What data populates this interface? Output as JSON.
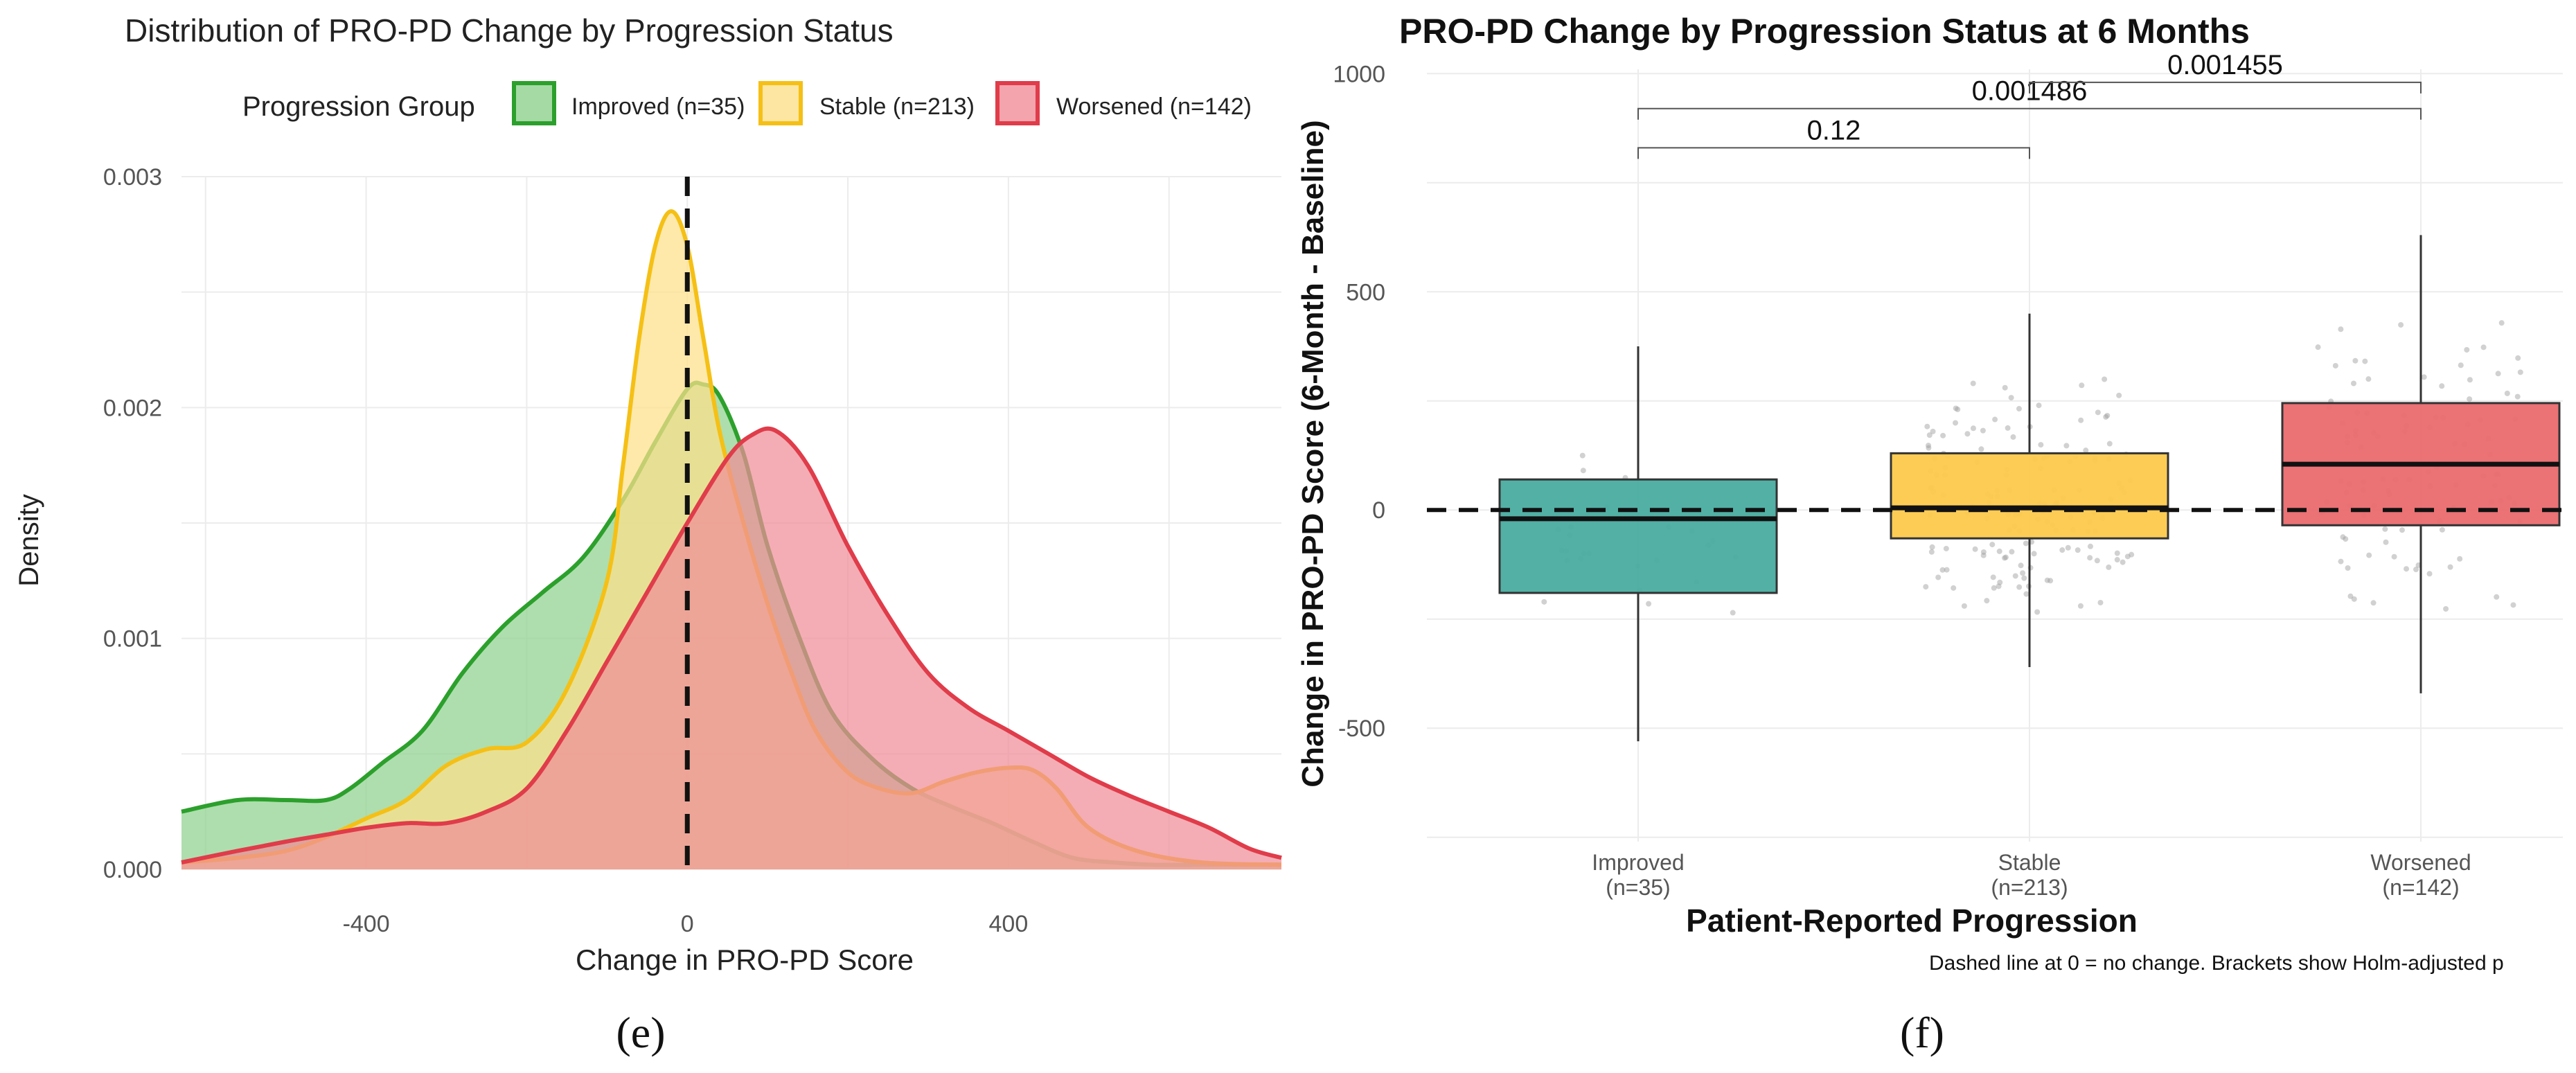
{
  "chart_data": [
    {
      "type": "area",
      "title": "Distribution of PRO-PD Change by Progression Status",
      "xlabel": "Change in PRO-PD Score",
      "ylabel": "Density",
      "xlim": [
        -630,
        740
      ],
      "ylim": [
        0,
        0.003
      ],
      "x_ticks": [
        -400,
        0,
        400
      ],
      "x_tick_labels": [
        "-400",
        "0",
        "400"
      ],
      "y_ticks": [
        0,
        0.001,
        0.002,
        0.003
      ],
      "y_tick_labels": [
        "0.000",
        "0.001",
        "0.002",
        "0.003"
      ],
      "grid": true,
      "legend": {
        "title": "Progression Group",
        "position": "top"
      },
      "reference_line": {
        "x": 0,
        "style": "dashed"
      },
      "series": [
        {
          "name": "Improved (n=35)",
          "color": "#2ca02c",
          "fill": "#8fd18f",
          "x": [
            -630,
            -560,
            -500,
            -450,
            -420,
            -380,
            -330,
            -280,
            -230,
            -180,
            -130,
            -80,
            -40,
            0,
            20,
            40,
            70,
            100,
            140,
            180,
            230,
            280,
            330,
            380,
            430,
            480,
            530,
            580,
            630,
            680,
            740
          ],
          "y": [
            0.00025,
            0.0003,
            0.0003,
            0.0003,
            0.00035,
            0.00046,
            0.0006,
            0.00085,
            0.00105,
            0.0012,
            0.00135,
            0.0016,
            0.00185,
            0.00208,
            0.0021,
            0.00205,
            0.0018,
            0.0014,
            0.001,
            0.00068,
            0.00048,
            0.00035,
            0.00027,
            0.0002,
            0.00012,
            5e-05,
            3e-05,
            2e-05,
            2e-05,
            2e-05,
            2e-05
          ]
        },
        {
          "name": "Stable (n=213)",
          "color": "#f5c016",
          "fill": "#fde08a",
          "x": [
            -630,
            -560,
            -500,
            -450,
            -400,
            -350,
            -300,
            -250,
            -200,
            -150,
            -100,
            -80,
            -60,
            -40,
            -20,
            0,
            20,
            40,
            70,
            100,
            130,
            160,
            200,
            240,
            280,
            320,
            360,
            400,
            430,
            460,
            500,
            560,
            640,
            740
          ],
          "y": [
            3e-05,
            5e-05,
            8e-05,
            0.00014,
            0.00022,
            0.0003,
            0.00045,
            0.00052,
            0.00055,
            0.00078,
            0.00125,
            0.00175,
            0.0023,
            0.0027,
            0.00285,
            0.0027,
            0.0023,
            0.0019,
            0.0015,
            0.00115,
            0.00085,
            0.0006,
            0.00042,
            0.00035,
            0.00033,
            0.00038,
            0.00042,
            0.00044,
            0.00043,
            0.00035,
            0.00018,
            8e-05,
            3e-05,
            2e-05
          ]
        },
        {
          "name": "Worsened (n=142)",
          "color": "#e03c4a",
          "fill": "#f08d98",
          "x": [
            -630,
            -560,
            -500,
            -450,
            -400,
            -350,
            -300,
            -250,
            -200,
            -150,
            -100,
            -50,
            0,
            50,
            80,
            110,
            150,
            200,
            250,
            300,
            350,
            400,
            450,
            500,
            550,
            600,
            650,
            700,
            740
          ],
          "y": [
            3e-05,
            8e-05,
            0.00012,
            0.00015,
            0.00018,
            0.0002,
            0.0002,
            0.00025,
            0.00035,
            0.0006,
            0.0009,
            0.0012,
            0.0015,
            0.00178,
            0.00188,
            0.0019,
            0.00175,
            0.0014,
            0.0011,
            0.00085,
            0.0007,
            0.0006,
            0.0005,
            0.0004,
            0.00032,
            0.00025,
            0.00018,
            9e-05,
            5e-05
          ]
        }
      ]
    },
    {
      "type": "box",
      "title": "PRO-PD Change by Progression Status at 6 Months",
      "xlabel": "Patient-Reported Progression",
      "ylabel": "Change in PRO-PD Score (6-Month - Baseline)",
      "ylim": [
        -760,
        1010
      ],
      "y_ticks": [
        -500,
        0,
        500,
        1000
      ],
      "y_tick_labels": [
        "-500",
        "0",
        "500",
        "1000"
      ],
      "grid": true,
      "reference_line": {
        "y": 0,
        "style": "dashed"
      },
      "caption": "Dashed line at 0 = no change. Brackets show Holm-adjusted p",
      "categories": [
        "Improved",
        "Stable",
        "Worsened"
      ],
      "category_counts": [
        "(n=35)",
        "(n=213)",
        "(n=142)"
      ],
      "boxes": [
        {
          "name": "Improved",
          "color": "#49aca0",
          "whisker_low": -530,
          "q1": -190,
          "median": -20,
          "q3": 70,
          "whisker_high": 375
        },
        {
          "name": "Stable",
          "color": "#fdc94c",
          "whisker_low": -360,
          "q1": -65,
          "median": 5,
          "q3": 130,
          "whisker_high": 450
        },
        {
          "name": "Worsened",
          "color": "#ea6a6e",
          "whisker_low": -420,
          "q1": -35,
          "median": 105,
          "q3": 245,
          "whisker_high": 630
        }
      ],
      "brackets": [
        {
          "from": "Improved",
          "to": "Stable",
          "label": "0.12",
          "y": 830
        },
        {
          "from": "Improved",
          "to": "Worsened",
          "label": "0.001486",
          "y": 920
        },
        {
          "from": "Stable",
          "to": "Worsened",
          "label": "0.001455",
          "y": 980
        }
      ]
    }
  ],
  "captions": {
    "left": "(e)",
    "right": "(f)"
  }
}
